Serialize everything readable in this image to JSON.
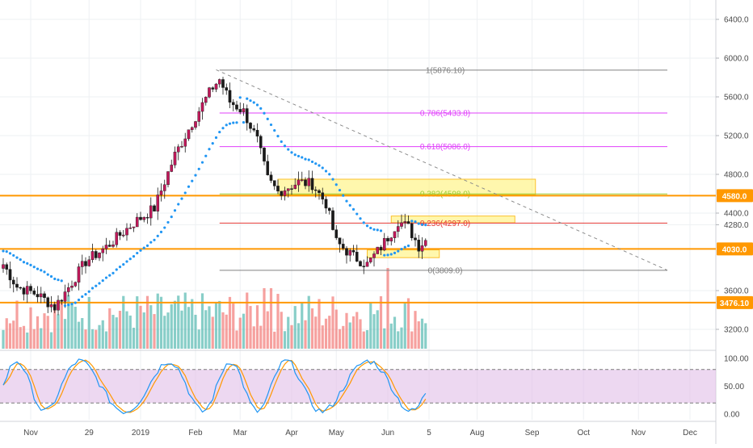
{
  "colors": {
    "up": "#26a69a",
    "down": "#ef5350",
    "candle_down_body": "#1a1a1a",
    "candle_up_body": "#c2185b",
    "sar": "#2196f3",
    "fib_0_1": "#808080",
    "fib_786_618": "#e040fb",
    "fib_382": "#9acd32",
    "fib_236": "#e53935",
    "support": "#ff9800",
    "zone_fill": "#fff176",
    "zone_border": "#fbc02d",
    "stoch_k": "#2196f3",
    "stoch_d": "#ff9800",
    "stoch_band": "#e1bee7",
    "grid": "#eef0f3",
    "axis_text": "#4a4a4a"
  },
  "chart_data": {
    "type": "candlestick",
    "price_axis": {
      "ylim": [
        3000,
        6600
      ],
      "ticks": [
        "6400.0",
        "6000.0",
        "5600.0",
        "5200.0",
        "4800.0",
        "4400.0",
        "4280.0",
        "3600.0",
        "3200.0"
      ],
      "tick_values": [
        6400,
        6000,
        5600,
        5200,
        4800,
        4400,
        4280,
        3600,
        3200
      ]
    },
    "time_axis": {
      "labels": [
        "Nov",
        "29",
        "2019",
        "Feb",
        "Mar",
        "Apr",
        "May",
        "Jun",
        "5",
        "Aug",
        "Sep",
        "Oct",
        "Nov",
        "Dec"
      ],
      "label_bars": [
        8,
        25,
        40,
        56,
        69,
        84,
        97,
        112,
        124,
        138,
        154,
        169,
        185,
        200
      ]
    },
    "bar_count": 124,
    "anchors": [
      {
        "bar": 0,
        "price": 3870
      },
      {
        "bar": 4,
        "price": 3640
      },
      {
        "bar": 10,
        "price": 3560
      },
      {
        "bar": 15,
        "price": 3430
      },
      {
        "bar": 18,
        "price": 3580
      },
      {
        "bar": 24,
        "price": 3900
      },
      {
        "bar": 30,
        "price": 4050
      },
      {
        "bar": 38,
        "price": 4300
      },
      {
        "bar": 44,
        "price": 4450
      },
      {
        "bar": 50,
        "price": 5000
      },
      {
        "bar": 56,
        "price": 5400
      },
      {
        "bar": 61,
        "price": 5700
      },
      {
        "bar": 63,
        "price": 5780
      },
      {
        "bar": 66,
        "price": 5550
      },
      {
        "bar": 70,
        "price": 5450
      },
      {
        "bar": 74,
        "price": 5150
      },
      {
        "bar": 77,
        "price": 4750
      },
      {
        "bar": 80,
        "price": 4620
      },
      {
        "bar": 86,
        "price": 4720
      },
      {
        "bar": 90,
        "price": 4700
      },
      {
        "bar": 94,
        "price": 4500
      },
      {
        "bar": 97,
        "price": 4100
      },
      {
        "bar": 102,
        "price": 3950
      },
      {
        "bar": 106,
        "price": 3870
      },
      {
        "bar": 110,
        "price": 4050
      },
      {
        "bar": 113,
        "price": 4200
      },
      {
        "bar": 115,
        "price": 4320
      },
      {
        "bar": 118,
        "price": 4250
      },
      {
        "bar": 121,
        "price": 4060
      },
      {
        "bar": 123,
        "price": 4120
      }
    ],
    "fib_levels": [
      {
        "label": "1(5876.10)",
        "value": 5876.1,
        "color_key": "fib_0_1"
      },
      {
        "label": "0.786(5433.8)",
        "value": 5433.8,
        "color_key": "fib_786_618"
      },
      {
        "label": "0.618(5086.0)",
        "value": 5086.0,
        "color_key": "fib_786_618"
      },
      {
        "label": "0.382(4598.0)",
        "value": 4598.0,
        "color_key": "fib_382"
      },
      {
        "label": "0.236(4297.0)",
        "value": 4297.0,
        "color_key": "fib_236"
      },
      {
        "label": "0(3809.0)",
        "value": 3809.0,
        "color_key": "fib_0_1"
      }
    ],
    "horizontal_lines": [
      {
        "label": "4580.0",
        "value": 4580
      },
      {
        "label": "4030.0",
        "value": 4030
      },
      {
        "label": "3476.10",
        "value": 3476.1
      }
    ],
    "trendline": {
      "from": {
        "bar": 62,
        "price": 5880
      },
      "to": {
        "bar": 194,
        "price": 3810
      }
    },
    "zones": [
      {
        "bar_start": 80,
        "bar_end": 155,
        "top": 4750,
        "bottom": 4590
      },
      {
        "bar_start": 113,
        "bar_end": 149,
        "top": 4370,
        "bottom": 4300
      },
      {
        "bar_start": 106,
        "bar_end": 127,
        "top": 4020,
        "bottom": 3940
      }
    ],
    "stochastic": {
      "ylim": [
        -10,
        110
      ],
      "ticks": [
        "100.00",
        "50.00",
        "0.00"
      ],
      "tick_values": [
        100,
        50,
        0
      ],
      "band": [
        20,
        80
      ]
    }
  }
}
